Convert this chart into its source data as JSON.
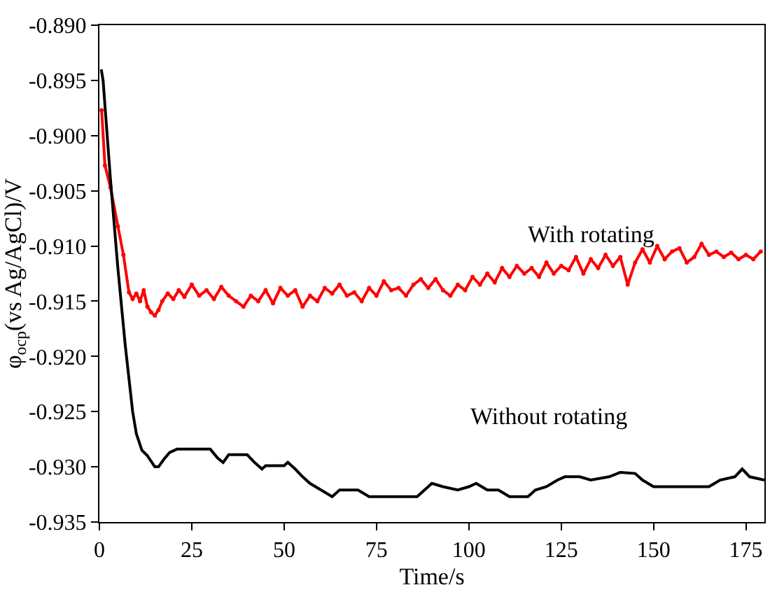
{
  "chart_data": {
    "type": "line",
    "xlabel": "Time/s",
    "ylabel": "φ$_{ocp}$(vs Ag/AgCl)/V",
    "xlim": [
      0,
      180
    ],
    "xticks": [
      0,
      25,
      50,
      75,
      100,
      125,
      150,
      175
    ],
    "ylim": [
      -0.935,
      -0.89
    ],
    "yticks": [
      {
        "value": -0.935,
        "label": "-0.935"
      },
      {
        "value": -0.93,
        "label": "-0.930"
      },
      {
        "value": -0.925,
        "label": "-0.925"
      },
      {
        "value": -0.92,
        "label": "-0.920"
      },
      {
        "value": -0.915,
        "label": "-0.915"
      },
      {
        "value": -0.91,
        "label": "-0.910"
      },
      {
        "value": -0.905,
        "label": "-0.905"
      },
      {
        "value": -0.9,
        "label": "-0.900"
      },
      {
        "value": -0.895,
        "label": "-0.895"
      },
      {
        "value": -0.89,
        "label": "-0.890"
      }
    ],
    "line_style": "solid",
    "series": [
      {
        "color": "#ff0000",
        "marker": "circle",
        "x": [
          0.6,
          1.5,
          3,
          5,
          6.5,
          8,
          9,
          10,
          11,
          12,
          13,
          14,
          15,
          16,
          17,
          18.5,
          20,
          21.5,
          23,
          25,
          27,
          29,
          31,
          33,
          35,
          37,
          39,
          41,
          43,
          45,
          47,
          49,
          51,
          53,
          55,
          57,
          59,
          61,
          63,
          65,
          67,
          69,
          71,
          73,
          75,
          77,
          79,
          81,
          83,
          85,
          87,
          89,
          91,
          93,
          95,
          97,
          99,
          101,
          103,
          105,
          107,
          109,
          111,
          113,
          115,
          117,
          119,
          121,
          123,
          125,
          127,
          129,
          131,
          133,
          135,
          137,
          139,
          141,
          143,
          145,
          147,
          149,
          151,
          153,
          155,
          157,
          159,
          161,
          163,
          165,
          167,
          169,
          171,
          173,
          175,
          177,
          179
        ],
        "values": [
          -0.8977,
          -0.9027,
          -0.9047,
          -0.9082,
          -0.9108,
          -0.9142,
          -0.9148,
          -0.9143,
          -0.915,
          -0.914,
          -0.9155,
          -0.916,
          -0.9163,
          -0.9158,
          -0.915,
          -0.9143,
          -0.9148,
          -0.914,
          -0.9146,
          -0.9135,
          -0.9145,
          -0.914,
          -0.9148,
          -0.9137,
          -0.9145,
          -0.915,
          -0.9155,
          -0.9145,
          -0.915,
          -0.914,
          -0.9152,
          -0.9138,
          -0.9145,
          -0.914,
          -0.9155,
          -0.9145,
          -0.915,
          -0.9138,
          -0.9143,
          -0.9135,
          -0.9145,
          -0.9142,
          -0.915,
          -0.9138,
          -0.9145,
          -0.9132,
          -0.914,
          -0.9138,
          -0.9145,
          -0.9135,
          -0.913,
          -0.9138,
          -0.913,
          -0.914,
          -0.9145,
          -0.9135,
          -0.914,
          -0.9128,
          -0.9135,
          -0.9125,
          -0.9133,
          -0.912,
          -0.9128,
          -0.9118,
          -0.9125,
          -0.912,
          -0.9128,
          -0.9115,
          -0.9125,
          -0.9118,
          -0.9122,
          -0.911,
          -0.9125,
          -0.9112,
          -0.912,
          -0.9108,
          -0.9118,
          -0.911,
          -0.9135,
          -0.9115,
          -0.9103,
          -0.9115,
          -0.91,
          -0.9112,
          -0.9105,
          -0.9102,
          -0.9115,
          -0.911,
          -0.9098,
          -0.9108,
          -0.9105,
          -0.911,
          -0.9106,
          -0.9112,
          -0.9108,
          -0.9112,
          -0.9105
        ]
      },
      {
        "color": "#000000",
        "marker": "none",
        "x": [
          0.5,
          1,
          3,
          5,
          7,
          9,
          10,
          11.5,
          13,
          15,
          16,
          17.5,
          19,
          21,
          30,
          32,
          33.5,
          35,
          40,
          42,
          44,
          45,
          50,
          51,
          53,
          55,
          57,
          60,
          63,
          65,
          70,
          73,
          86,
          88,
          90,
          93,
          97,
          100,
          102,
          105,
          108,
          111,
          116,
          118,
          121,
          124,
          126,
          130,
          133,
          138,
          141,
          145,
          147,
          150,
          165,
          168,
          172,
          174,
          176,
          180
        ],
        "values": [
          -0.894,
          -0.895,
          -0.904,
          -0.912,
          -0.919,
          -0.925,
          -0.927,
          -0.9285,
          -0.929,
          -0.93,
          -0.93,
          -0.9293,
          -0.9287,
          -0.9284,
          -0.9284,
          -0.9292,
          -0.9296,
          -0.9289,
          -0.9289,
          -0.9296,
          -0.9302,
          -0.9299,
          -0.9299,
          -0.9296,
          -0.9302,
          -0.9309,
          -0.9315,
          -0.9321,
          -0.9327,
          -0.9321,
          -0.9321,
          -0.9327,
          -0.9327,
          -0.9321,
          -0.9315,
          -0.9318,
          -0.9321,
          -0.9318,
          -0.9315,
          -0.9321,
          -0.9321,
          -0.9327,
          -0.9327,
          -0.9321,
          -0.9318,
          -0.9312,
          -0.9309,
          -0.9309,
          -0.9312,
          -0.9309,
          -0.9305,
          -0.9306,
          -0.9312,
          -0.9318,
          -0.9318,
          -0.9312,
          -0.9309,
          -0.9302,
          -0.9309,
          -0.9312
        ]
      }
    ],
    "annotations": [
      "With rotating",
      "Without rotating"
    ]
  }
}
